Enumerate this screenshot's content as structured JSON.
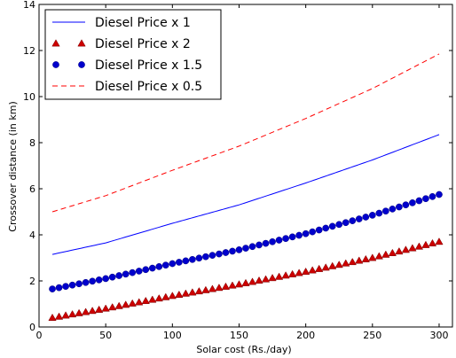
{
  "chart_data": {
    "type": "line",
    "title": "",
    "xlabel": "Solar cost (Rs./day)",
    "ylabel": "Crossover distance (in km)",
    "xlim": [
      0,
      310
    ],
    "ylim": [
      0,
      14
    ],
    "xticks": [
      0,
      50,
      100,
      150,
      200,
      250,
      300
    ],
    "yticks": [
      0,
      2,
      4,
      6,
      8,
      10,
      12,
      14
    ],
    "grid": false,
    "legend_position": "upper-left",
    "x_start": 10,
    "x_end": 300,
    "marker_step": 5,
    "series": [
      {
        "name": "Diesel Price x 1",
        "style": "solid-line",
        "color": "#0000ff",
        "x": [
          10,
          50,
          100,
          150,
          200,
          250,
          300
        ],
        "values": [
          3.15,
          3.65,
          4.5,
          5.3,
          6.25,
          7.25,
          8.35
        ]
      },
      {
        "name": "Diesel Price x 2",
        "style": "triangle-markers",
        "color": "#cc0000",
        "x": [
          10,
          50,
          100,
          150,
          200,
          250,
          300
        ],
        "values": [
          0.4,
          0.8,
          1.35,
          1.85,
          2.4,
          3.0,
          3.7
        ]
      },
      {
        "name": "Diesel Price x 1.5",
        "style": "circle-markers",
        "color": "#0000cc",
        "x": [
          10,
          50,
          100,
          150,
          200,
          250,
          300
        ],
        "values": [
          1.65,
          2.1,
          2.75,
          3.35,
          4.05,
          4.85,
          5.75
        ]
      },
      {
        "name": "Diesel Price x 0.5",
        "style": "dashed-line",
        "color": "#ff0000",
        "x": [
          10,
          50,
          100,
          150,
          200,
          250,
          300
        ],
        "values": [
          5.0,
          5.7,
          6.8,
          7.85,
          9.05,
          10.35,
          11.85
        ]
      }
    ]
  }
}
